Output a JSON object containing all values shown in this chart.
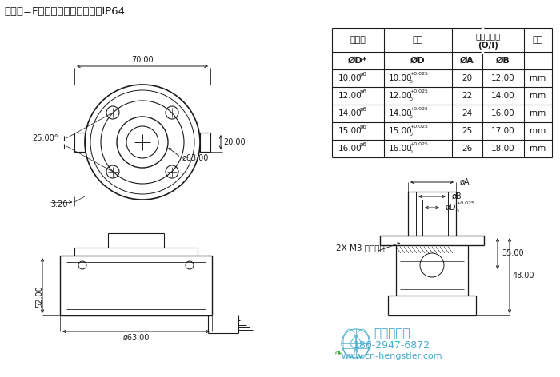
{
  "title": "轴安装=F；轴套型，前夹紧环；IP64",
  "bg_color": "#ffffff",
  "table_col1": [
    "10.00",
    "12.00",
    "14.00",
    "15.00",
    "16.00"
  ],
  "table_col2": [
    "10.00",
    "12.00",
    "14.00",
    "15.00",
    "16.00"
  ],
  "table_col3": [
    "20",
    "22",
    "24",
    "25",
    "26"
  ],
  "table_col4": [
    "12.00",
    "14.00",
    "16.00",
    "17.00",
    "18.00"
  ],
  "watermark_line1": "西安德伍拓",
  "watermark_line2": "186-2947-6872",
  "watermark_line3": "www.cn-hengstler.com",
  "dim_70": "70.00",
  "dim_25": "25.00°",
  "dim_63_top": "ø63.00",
  "dim_20": "20.00",
  "dim_3_2": "3.20",
  "dim_52": "52.00",
  "dim_63_bot": "ø63.00",
  "dim_phiA": "øA",
  "dim_phiB": "øB",
  "dim_35": "35.00",
  "dim_48": "48.00",
  "label_m3": "2X M3 固定螺钉",
  "line_color": "#1a1a1a",
  "dim_color": "#1a1a1a",
  "watermark_color": "#44aacc",
  "watermark_green": "#44aa44",
  "font_path_candidates": [
    "SimHei",
    "Microsoft YaHei",
    "WenQuanYi Micro Hei",
    "Arial Unicode MS",
    "DejaVu Sans"
  ]
}
